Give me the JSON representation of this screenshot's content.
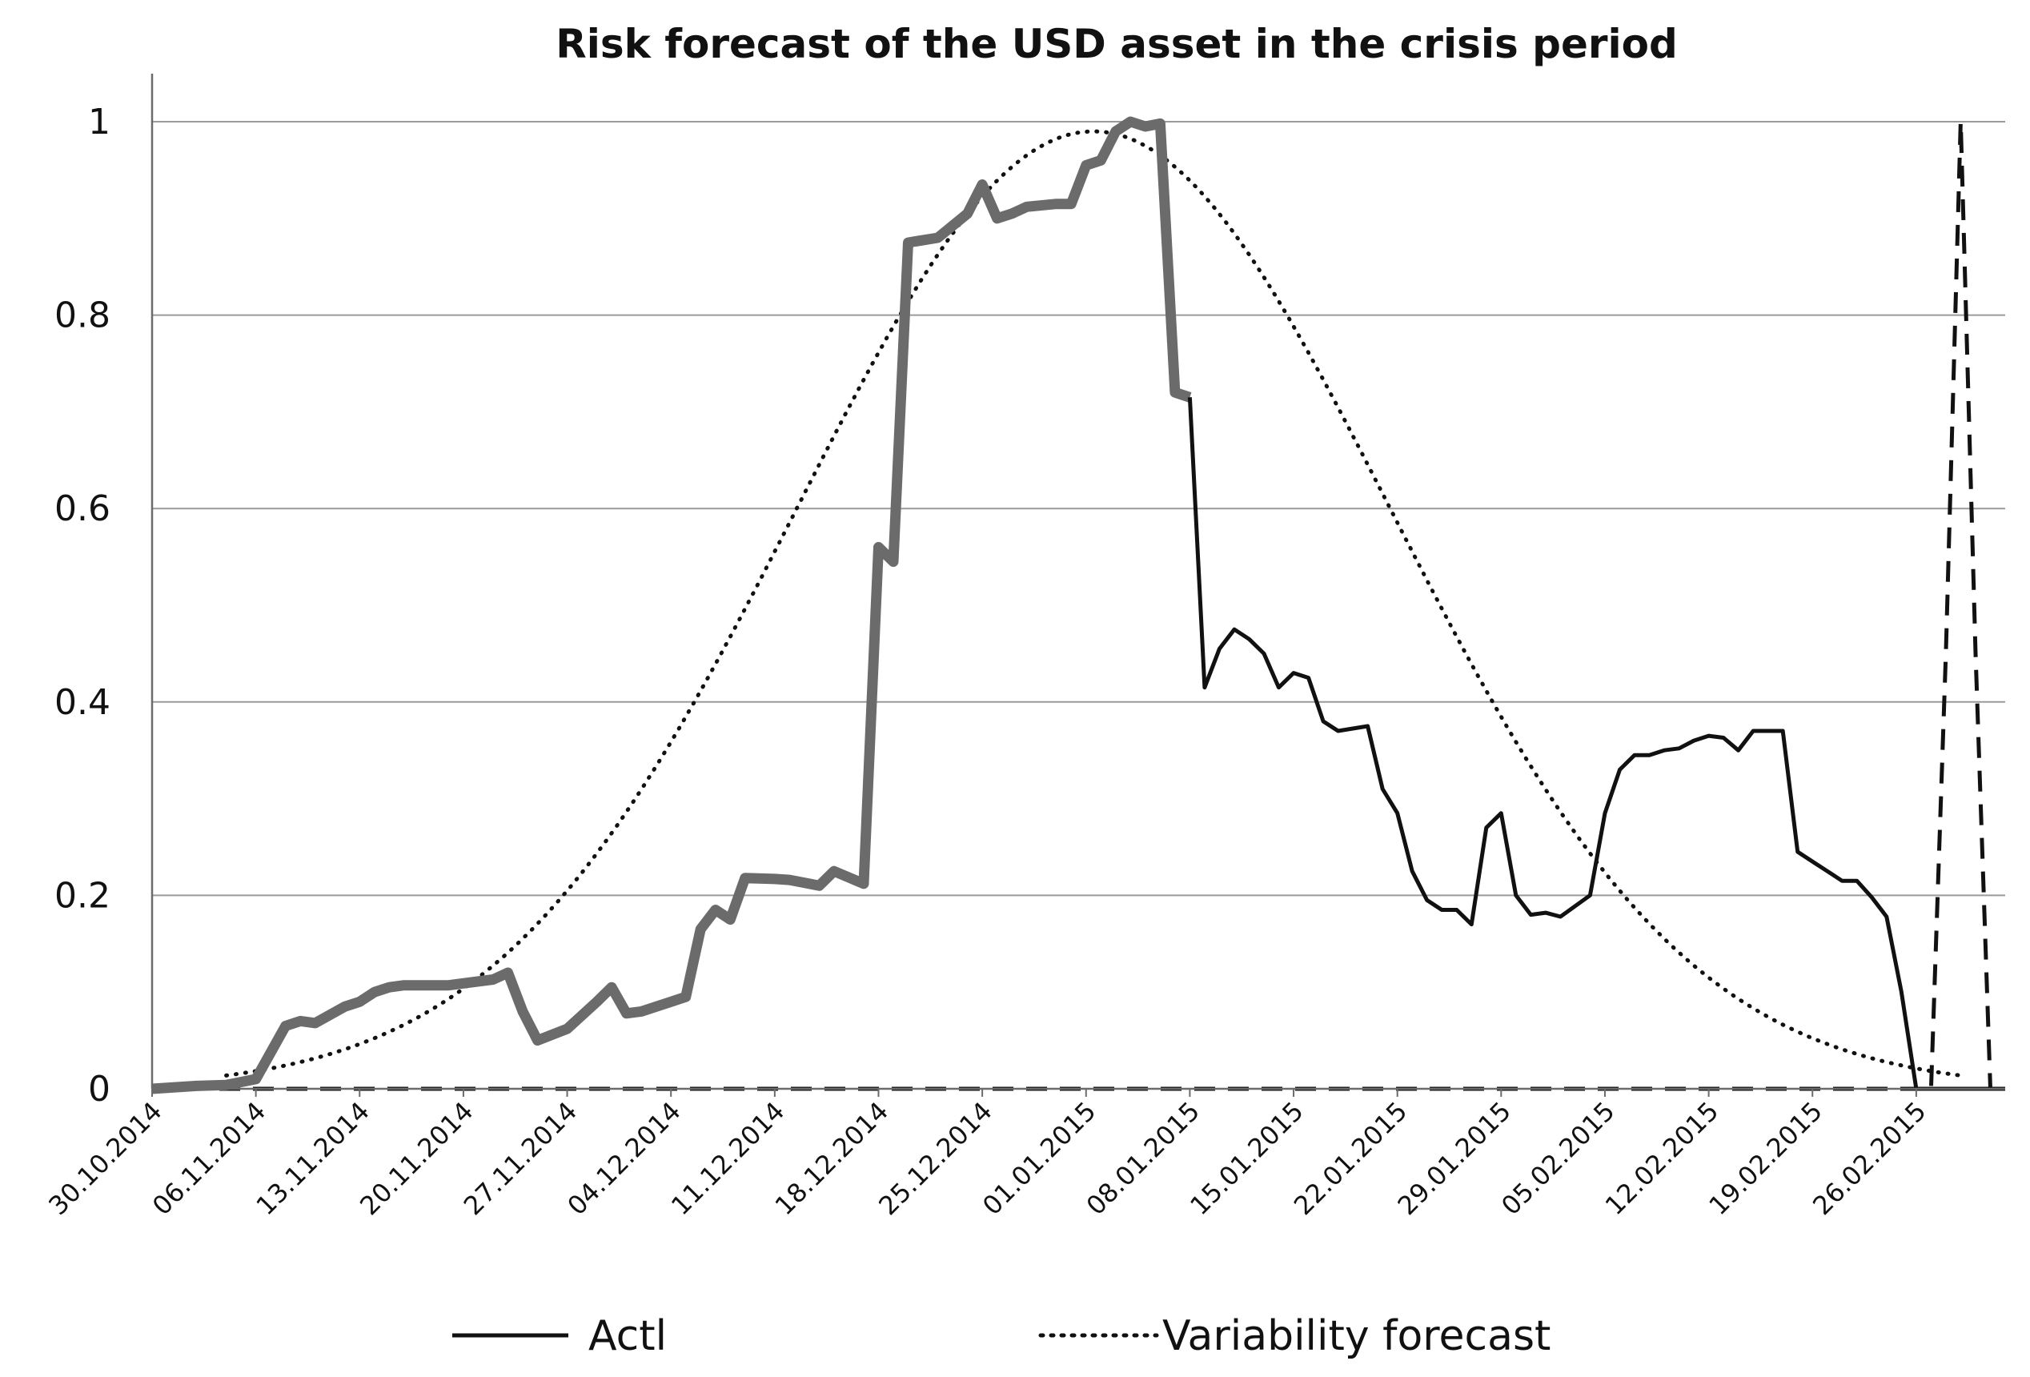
{
  "chart_data": {
    "type": "line",
    "title": "Risk forecast of the USD asset in the crisis period",
    "xlabel": "",
    "ylabel": "",
    "ylim": [
      0,
      1.05
    ],
    "grid": true,
    "legend_position": "bottom",
    "y_ticks": [
      "0",
      "0.2",
      "0.4",
      "0.6",
      "0.8",
      "1"
    ],
    "x_ticks": [
      "30.10.2014",
      "06.11.2014",
      "13.11.2014",
      "20.11.2014",
      "27.11.2014",
      "04.12.2014",
      "11.12.2014",
      "18.12.2014",
      "25.12.2014",
      "01.01.2015",
      "08.01.2015",
      "15.01.2015",
      "22.01.2015",
      "29.01.2015",
      "05.02.2015",
      "12.02.2015",
      "19.02.2015",
      "26.02.2015"
    ],
    "x_tick_days": [
      0,
      7,
      14,
      21,
      28,
      35,
      42,
      49,
      56,
      63,
      70,
      77,
      84,
      91,
      98,
      105,
      112,
      119
    ],
    "x_range_days": [
      0,
      125
    ],
    "x_unit": "days since 30.10.2014",
    "series": [
      {
        "name": "Actl",
        "style": "solid",
        "points": [
          [
            0,
            0
          ],
          [
            3,
            0.003
          ],
          [
            5,
            0.004
          ],
          [
            7,
            0.01
          ],
          [
            9,
            0.065
          ],
          [
            10,
            0.07
          ],
          [
            11,
            0.068
          ],
          [
            13,
            0.085
          ],
          [
            14,
            0.09
          ],
          [
            15,
            0.1
          ],
          [
            16,
            0.105
          ],
          [
            17,
            0.107
          ],
          [
            20,
            0.107
          ],
          [
            23,
            0.113
          ],
          [
            24,
            0.12
          ],
          [
            25,
            0.08
          ],
          [
            26,
            0.05
          ],
          [
            28,
            0.062
          ],
          [
            30,
            0.09
          ],
          [
            31,
            0.105
          ],
          [
            32,
            0.078
          ],
          [
            33,
            0.08
          ],
          [
            35,
            0.09
          ],
          [
            36,
            0.095
          ],
          [
            37,
            0.165
          ],
          [
            38,
            0.185
          ],
          [
            39,
            0.175
          ],
          [
            40,
            0.218
          ],
          [
            42,
            0.217
          ],
          [
            43,
            0.216
          ],
          [
            45,
            0.21
          ],
          [
            46,
            0.225
          ],
          [
            48,
            0.212
          ],
          [
            49,
            0.56
          ],
          [
            50,
            0.545
          ],
          [
            51,
            0.875
          ],
          [
            53,
            0.88
          ],
          [
            55,
            0.905
          ],
          [
            56,
            0.935
          ],
          [
            57,
            0.9
          ],
          [
            58,
            0.905
          ],
          [
            59,
            0.912
          ],
          [
            61,
            0.915
          ],
          [
            62,
            0.915
          ],
          [
            63,
            0.955
          ],
          [
            64,
            0.96
          ],
          [
            65,
            0.99
          ],
          [
            66,
            1.0
          ],
          [
            67,
            0.995
          ],
          [
            68,
            0.998
          ],
          [
            69,
            0.72
          ],
          [
            70,
            0.715
          ],
          [
            71,
            0.415
          ],
          [
            72,
            0.455
          ],
          [
            73,
            0.475
          ],
          [
            74,
            0.465
          ],
          [
            75,
            0.45
          ],
          [
            76,
            0.415
          ],
          [
            77,
            0.43
          ],
          [
            78,
            0.425
          ],
          [
            79,
            0.38
          ],
          [
            80,
            0.37
          ],
          [
            82,
            0.375
          ],
          [
            83,
            0.31
          ],
          [
            84,
            0.285
          ],
          [
            85,
            0.225
          ],
          [
            86,
            0.195
          ],
          [
            87,
            0.185
          ],
          [
            88,
            0.185
          ],
          [
            89,
            0.17
          ],
          [
            90,
            0.27
          ],
          [
            91,
            0.285
          ],
          [
            92,
            0.2
          ],
          [
            93,
            0.18
          ],
          [
            94,
            0.182
          ],
          [
            95,
            0.178
          ],
          [
            97,
            0.2
          ],
          [
            98,
            0.285
          ],
          [
            99,
            0.33
          ],
          [
            100,
            0.345
          ],
          [
            101,
            0.345
          ],
          [
            102,
            0.35
          ],
          [
            103,
            0.352
          ],
          [
            104,
            0.36
          ],
          [
            105,
            0.365
          ],
          [
            106,
            0.363
          ],
          [
            107,
            0.35
          ],
          [
            108,
            0.37
          ],
          [
            110,
            0.37
          ],
          [
            111,
            0.245
          ],
          [
            112,
            0.235
          ],
          [
            113,
            0.225
          ],
          [
            114,
            0.215
          ],
          [
            115,
            0.215
          ],
          [
            116,
            0.198
          ],
          [
            117,
            0.178
          ],
          [
            118,
            0.1
          ],
          [
            119,
            0.0
          ],
          [
            125,
            0.0
          ]
        ]
      },
      {
        "name": "Variability forecast",
        "style": "dotted",
        "curve": "bell",
        "center_day": 63.5,
        "sigma_days": 20,
        "peak": 0.99,
        "range_days": [
          5,
          122
        ]
      },
      {
        "name": "",
        "style": "dashed",
        "points": [
          [
            0,
            0
          ],
          [
            120,
            0
          ],
          [
            121,
            0.45
          ],
          [
            122,
            1.0
          ],
          [
            123,
            0.45
          ],
          [
            124,
            0
          ],
          [
            125,
            0
          ]
        ]
      }
    ]
  }
}
